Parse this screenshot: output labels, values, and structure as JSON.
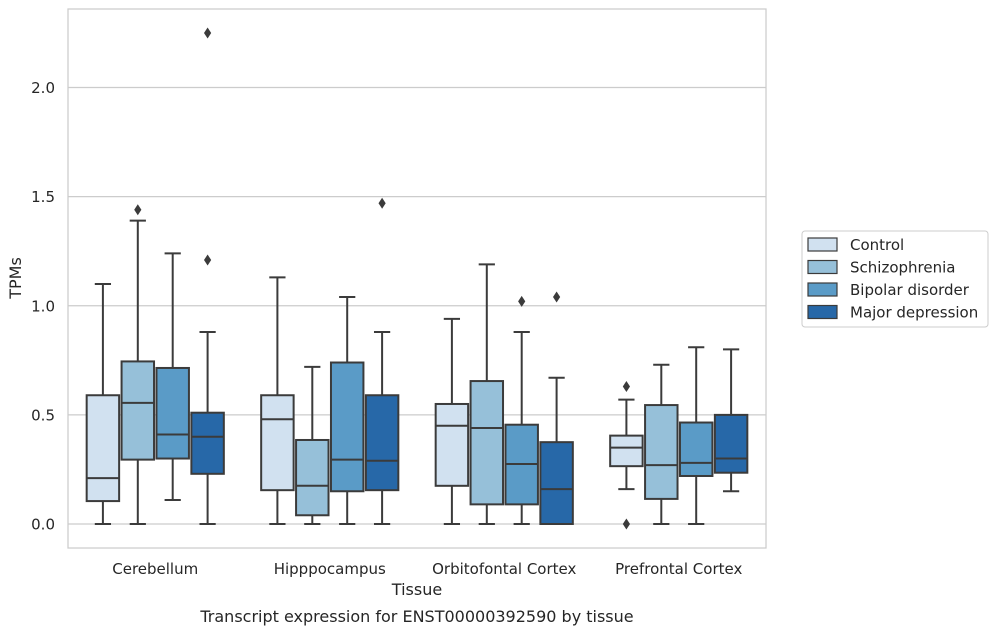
{
  "chart_data": {
    "type": "box",
    "caption": "Transcript expression for ENST00000392590 by tissue",
    "xlabel": "Tissue",
    "ylabel": "TPMs",
    "ylim": [
      -0.11,
      2.36
    ],
    "yticks": [
      0.0,
      0.5,
      1.0,
      1.5,
      2.0
    ],
    "ytick_labels": [
      "0.0",
      "0.5",
      "1.0",
      "1.5",
      "2.0"
    ],
    "grid": "horizontal",
    "legend_position": "right",
    "categories": [
      "Cerebellum",
      "Hipppocampus",
      "Orbitofontal Cortex",
      "Prefrontal Cortex"
    ],
    "series": [
      {
        "name": "Control",
        "color": "#d1e1f0",
        "boxes": [
          {
            "whislo": 0.0,
            "q1": 0.105,
            "med": 0.21,
            "q3": 0.59,
            "whishi": 1.1,
            "fliers": []
          },
          {
            "whislo": 0.0,
            "q1": 0.155,
            "med": 0.48,
            "q3": 0.59,
            "whishi": 1.13,
            "fliers": []
          },
          {
            "whislo": 0.0,
            "q1": 0.175,
            "med": 0.45,
            "q3": 0.55,
            "whishi": 0.94,
            "fliers": []
          },
          {
            "whislo": 0.16,
            "q1": 0.265,
            "med": 0.35,
            "q3": 0.405,
            "whishi": 0.57,
            "fliers": [
              0.0,
              0.63
            ]
          }
        ]
      },
      {
        "name": "Schizophrenia",
        "color": "#96c0d9",
        "boxes": [
          {
            "whislo": 0.0,
            "q1": 0.295,
            "med": 0.555,
            "q3": 0.745,
            "whishi": 1.39,
            "fliers": [
              1.44
            ]
          },
          {
            "whislo": 0.0,
            "q1": 0.04,
            "med": 0.175,
            "q3": 0.385,
            "whishi": 0.72,
            "fliers": []
          },
          {
            "whislo": 0.0,
            "q1": 0.09,
            "med": 0.44,
            "q3": 0.655,
            "whishi": 1.19,
            "fliers": []
          },
          {
            "whislo": 0.0,
            "q1": 0.115,
            "med": 0.27,
            "q3": 0.545,
            "whishi": 0.73,
            "fliers": []
          }
        ]
      },
      {
        "name": "Bipolar disorder",
        "color": "#5a9bc7",
        "boxes": [
          {
            "whislo": 0.11,
            "q1": 0.3,
            "med": 0.41,
            "q3": 0.715,
            "whishi": 1.24,
            "fliers": []
          },
          {
            "whislo": 0.0,
            "q1": 0.15,
            "med": 0.295,
            "q3": 0.74,
            "whishi": 1.04,
            "fliers": []
          },
          {
            "whislo": 0.0,
            "q1": 0.09,
            "med": 0.275,
            "q3": 0.455,
            "whishi": 0.88,
            "fliers": [
              1.02
            ]
          },
          {
            "whislo": 0.0,
            "q1": 0.22,
            "med": 0.28,
            "q3": 0.465,
            "whishi": 0.81,
            "fliers": []
          }
        ]
      },
      {
        "name": "Major depression",
        "color": "#2768a8",
        "boxes": [
          {
            "whislo": 0.0,
            "q1": 0.23,
            "med": 0.4,
            "q3": 0.51,
            "whishi": 0.88,
            "fliers": [
              1.21,
              2.25
            ]
          },
          {
            "whislo": 0.0,
            "q1": 0.155,
            "med": 0.29,
            "q3": 0.59,
            "whishi": 0.88,
            "fliers": [
              1.47
            ]
          },
          {
            "whislo": 0.0,
            "q1": 0.0,
            "med": 0.16,
            "q3": 0.375,
            "whishi": 0.67,
            "fliers": [
              1.04
            ]
          },
          {
            "whislo": 0.15,
            "q1": 0.235,
            "med": 0.3,
            "q3": 0.5,
            "whishi": 0.8,
            "fliers": []
          }
        ]
      }
    ]
  }
}
